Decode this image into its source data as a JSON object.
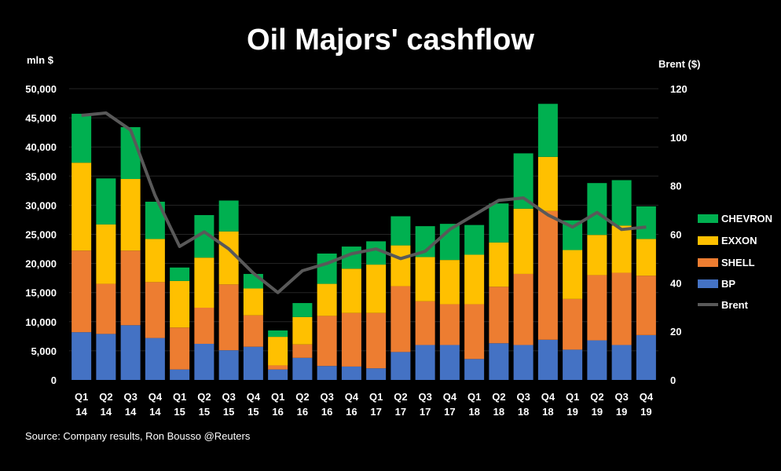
{
  "chart_data": {
    "type": "bar",
    "title": "Oil Majors' cashflow",
    "ylabel": "mln $",
    "y2label": "Brent ($)",
    "ylim": [
      0,
      50000
    ],
    "y2lim": [
      0,
      120
    ],
    "y_ticks": [
      "0",
      "5,000",
      "10,000",
      "15,000",
      "20,000",
      "25,000",
      "30,000",
      "35,000",
      "40,000",
      "45,000",
      "50,000"
    ],
    "y2_ticks": [
      "0",
      "20",
      "40",
      "60",
      "80",
      "100",
      "120"
    ],
    "categories": [
      [
        "Q1",
        "14"
      ],
      [
        "Q2",
        "14"
      ],
      [
        "Q3",
        "14"
      ],
      [
        "Q4",
        "14"
      ],
      [
        "Q1",
        "15"
      ],
      [
        "Q2",
        "15"
      ],
      [
        "Q3",
        "15"
      ],
      [
        "Q4",
        "15"
      ],
      [
        "Q1",
        "16"
      ],
      [
        "Q2",
        "16"
      ],
      [
        "Q3",
        "16"
      ],
      [
        "Q4",
        "16"
      ],
      [
        "Q1",
        "17"
      ],
      [
        "Q2",
        "17"
      ],
      [
        "Q3",
        "17"
      ],
      [
        "Q4",
        "17"
      ],
      [
        "Q1",
        "18"
      ],
      [
        "Q2",
        "18"
      ],
      [
        "Q3",
        "18"
      ],
      [
        "Q4",
        "18"
      ],
      [
        "Q1",
        "19"
      ],
      [
        "Q2",
        "19"
      ],
      [
        "Q3",
        "19"
      ],
      [
        "Q4",
        "19"
      ]
    ],
    "series": [
      {
        "name": "BP",
        "color": "#4472c4",
        "type": "bar",
        "values": [
          8200,
          7900,
          9400,
          7200,
          1800,
          6200,
          5100,
          5700,
          1800,
          3800,
          2400,
          2300,
          2000,
          4800,
          6000,
          6000,
          3600,
          6300,
          6000,
          6900,
          5200,
          6800,
          6000,
          7700
        ]
      },
      {
        "name": "SHELL",
        "color": "#ed7d31",
        "type": "bar",
        "values": [
          14000,
          8600,
          12800,
          9600,
          7200,
          6200,
          11300,
          5400,
          700,
          2300,
          8600,
          9200,
          9500,
          11300,
          7500,
          7000,
          9400,
          9700,
          12200,
          22100,
          8700,
          11200,
          12400,
          10200
        ]
      },
      {
        "name": "EXXON",
        "color": "#ffc000",
        "type": "bar",
        "values": [
          15100,
          10200,
          12300,
          7400,
          8000,
          8600,
          9100,
          4600,
          4900,
          4700,
          5500,
          7600,
          8300,
          7000,
          7600,
          7600,
          8500,
          7600,
          11200,
          9300,
          8400,
          6900,
          8100,
          6300
        ]
      },
      {
        "name": "CHEVRON",
        "color": "#00b050",
        "type": "bar",
        "values": [
          8400,
          7900,
          8900,
          6400,
          2300,
          7300,
          5300,
          2500,
          1100,
          2400,
          5200,
          3800,
          4000,
          5000,
          5300,
          6200,
          5100,
          6700,
          9500,
          9100,
          5100,
          8900,
          7800,
          5600
        ]
      },
      {
        "name": "Brent",
        "color": "#595959",
        "type": "line",
        "values": [
          109,
          110,
          103,
          76,
          55,
          61,
          54,
          44,
          36,
          45,
          48,
          52,
          54,
          50,
          53,
          62,
          68,
          74,
          75,
          68,
          63,
          69,
          62,
          63
        ]
      }
    ],
    "legend": [
      "CHEVRON",
      "EXXON",
      "SHELL",
      "BP",
      "Brent"
    ],
    "legend_position": "right"
  },
  "source": "Source: Company results, Ron Bousso @Reuters"
}
